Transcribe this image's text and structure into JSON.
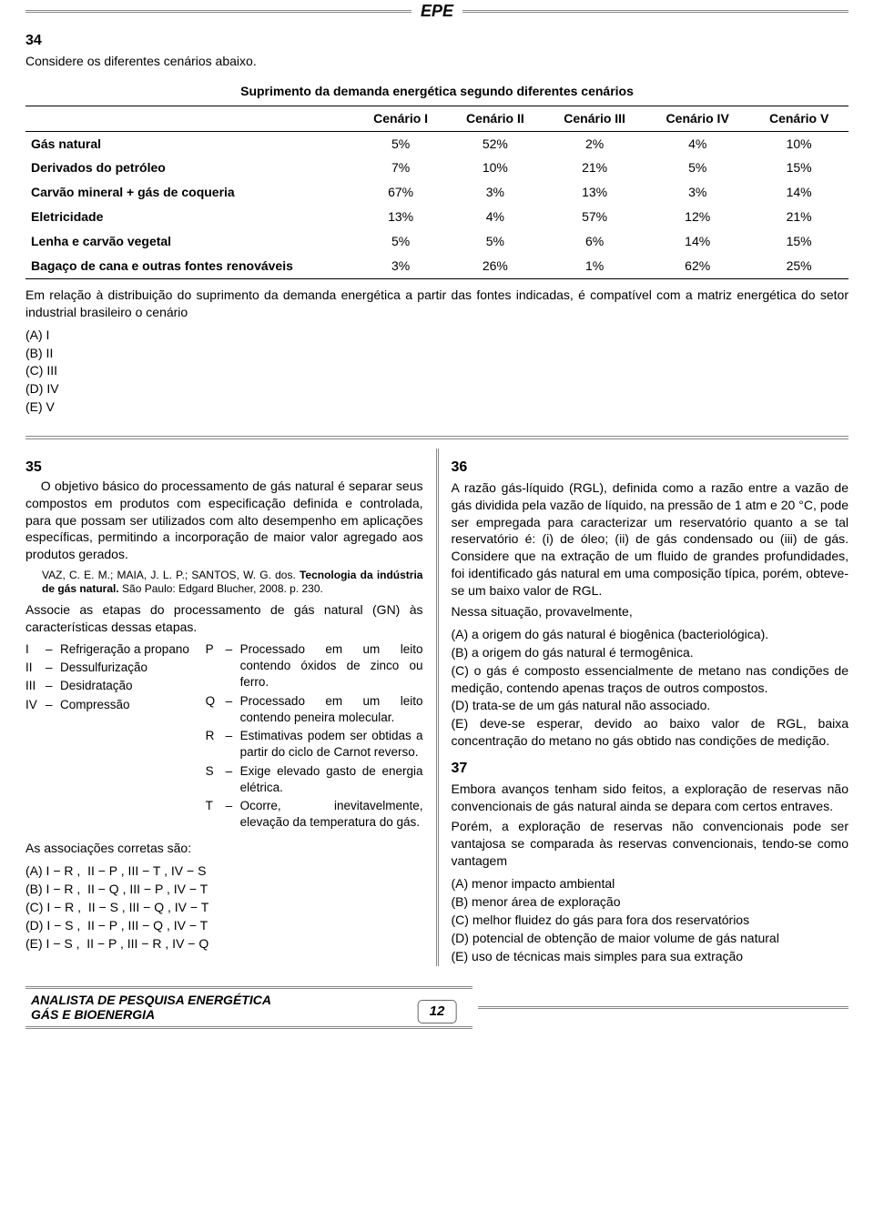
{
  "header": {
    "org": "EPE"
  },
  "q34": {
    "num": "34",
    "prompt": "Considere os diferentes cenários abaixo.",
    "table": {
      "title": "Suprimento da demanda energética segundo diferentes cenários",
      "columns": [
        "",
        "Cenário I",
        "Cenário II",
        "Cenário III",
        "Cenário IV",
        "Cenário V"
      ],
      "rows": [
        {
          "label": "Gás natural",
          "c": [
            "5%",
            "52%",
            "2%",
            "4%",
            "10%"
          ]
        },
        {
          "label": "Derivados do petróleo",
          "c": [
            "7%",
            "10%",
            "21%",
            "5%",
            "15%"
          ]
        },
        {
          "label": "Carvão mineral + gás de coqueria",
          "c": [
            "67%",
            "3%",
            "13%",
            "3%",
            "14%"
          ]
        },
        {
          "label": "Eletricidade",
          "c": [
            "13%",
            "4%",
            "57%",
            "12%",
            "21%"
          ]
        },
        {
          "label": "Lenha e carvão vegetal",
          "c": [
            "5%",
            "5%",
            "6%",
            "14%",
            "15%"
          ]
        },
        {
          "label": "Bagaço de cana e outras fontes renováveis",
          "c": [
            "3%",
            "26%",
            "1%",
            "62%",
            "25%"
          ]
        }
      ]
    },
    "stem": "Em relação à distribuição do suprimento da demanda energética a partir das fontes indicadas, é compatível com a matriz energética do setor industrial brasileiro o cenário",
    "options": [
      "(A) I",
      "(B) II",
      "(C) III",
      "(D) IV",
      "(E) V"
    ]
  },
  "q35": {
    "num": "35",
    "intro": "O objetivo básico do processamento de gás natural é separar seus compostos em produtos com especificação definida e controlada, para que possam ser utilizados com alto desempenho em aplicações específicas, permitindo a incorporação de maior valor agregado aos produtos gerados.",
    "citation_html": "VAZ, C. E. M.; MAIA, J. L. P.; SANTOS, W. G. dos. <b>Tecnologia da indústria de gás natural.</b> São Paulo: Edgard Blucher, 2008. p. 230.",
    "task": "Associe as etapas do processamento de gás natural (GN) às características dessas etapas.",
    "left": [
      [
        "I",
        "Refrigeração a propano"
      ],
      [
        "II",
        "Dessulfurização"
      ],
      [
        "III",
        "Desidratação"
      ],
      [
        "IV",
        "Compressão"
      ]
    ],
    "right": [
      [
        "P",
        "Processado em um leito contendo óxidos de zinco ou ferro."
      ],
      [
        "Q",
        "Processado em um leito contendo peneira molecular."
      ],
      [
        "R",
        "Estimativas podem ser obtidas a partir do ciclo de Carnot reverso."
      ],
      [
        "S",
        "Exige elevado gasto de energia elétrica."
      ],
      [
        "T",
        "Ocorre, inevitavelmente, elevação da temperatura do gás."
      ]
    ],
    "assoc_label": "As associações corretas são:",
    "options": [
      "(A) I − R ,  II − P , III − T , IV − S",
      "(B) I − R ,  II − Q , III − P , IV − T",
      "(C) I − R ,  II − S , III − Q , IV − T",
      "(D) I − S ,  II − P , III − Q , IV − T",
      "(E) I − S ,  II − P , III − R , IV − Q"
    ]
  },
  "q36": {
    "num": "36",
    "body": "A razão gás-líquido (RGL), definida como a razão entre a vazão de gás dividida pela vazão de líquido, na pressão de 1 atm e 20 °C, pode ser empregada para caracterizar um reservatório quanto a se tal reservatório é: (i) de óleo; (ii) de gás condensado ou (iii) de gás. Considere que na extração de um fluido de grandes profundidades, foi identificado gás natural em uma composição típica, porém, obteve-se um baixo valor de RGL.",
    "lead": "Nessa situação, provavelmente,",
    "options": [
      "(A) a origem do gás natural é biogênica (bacteriológica).",
      "(B) a origem do gás natural é termogênica.",
      "(C) o gás é composto essencialmente de metano nas condições de medição, contendo apenas traços de outros compostos.",
      "(D) trata-se de um gás natural não associado.",
      "(E) deve-se esperar, devido ao baixo valor de RGL, baixa concentração do metano no gás obtido nas condições de medição."
    ]
  },
  "q37": {
    "num": "37",
    "p1": "Embora avanços tenham sido feitos, a exploração de reservas não convencionais de gás natural ainda se depara com certos entraves.",
    "p2": "Porém, a exploração de reservas não convencionais pode ser vantajosa se comparada às reservas convencionais, tendo-se como vantagem",
    "options": [
      "(A) menor impacto ambiental",
      "(B) menor área de exploração",
      "(C) melhor fluidez do gás para fora dos reservatórios",
      "(D) potencial de obtenção de maior volume de gás natural",
      "(E) uso de técnicas mais simples para sua extração"
    ]
  },
  "footer": {
    "role": "ANALISTA DE PESQUISA ENERGÉTICA",
    "area": "GÁS E BIOENERGIA",
    "page": "12"
  }
}
